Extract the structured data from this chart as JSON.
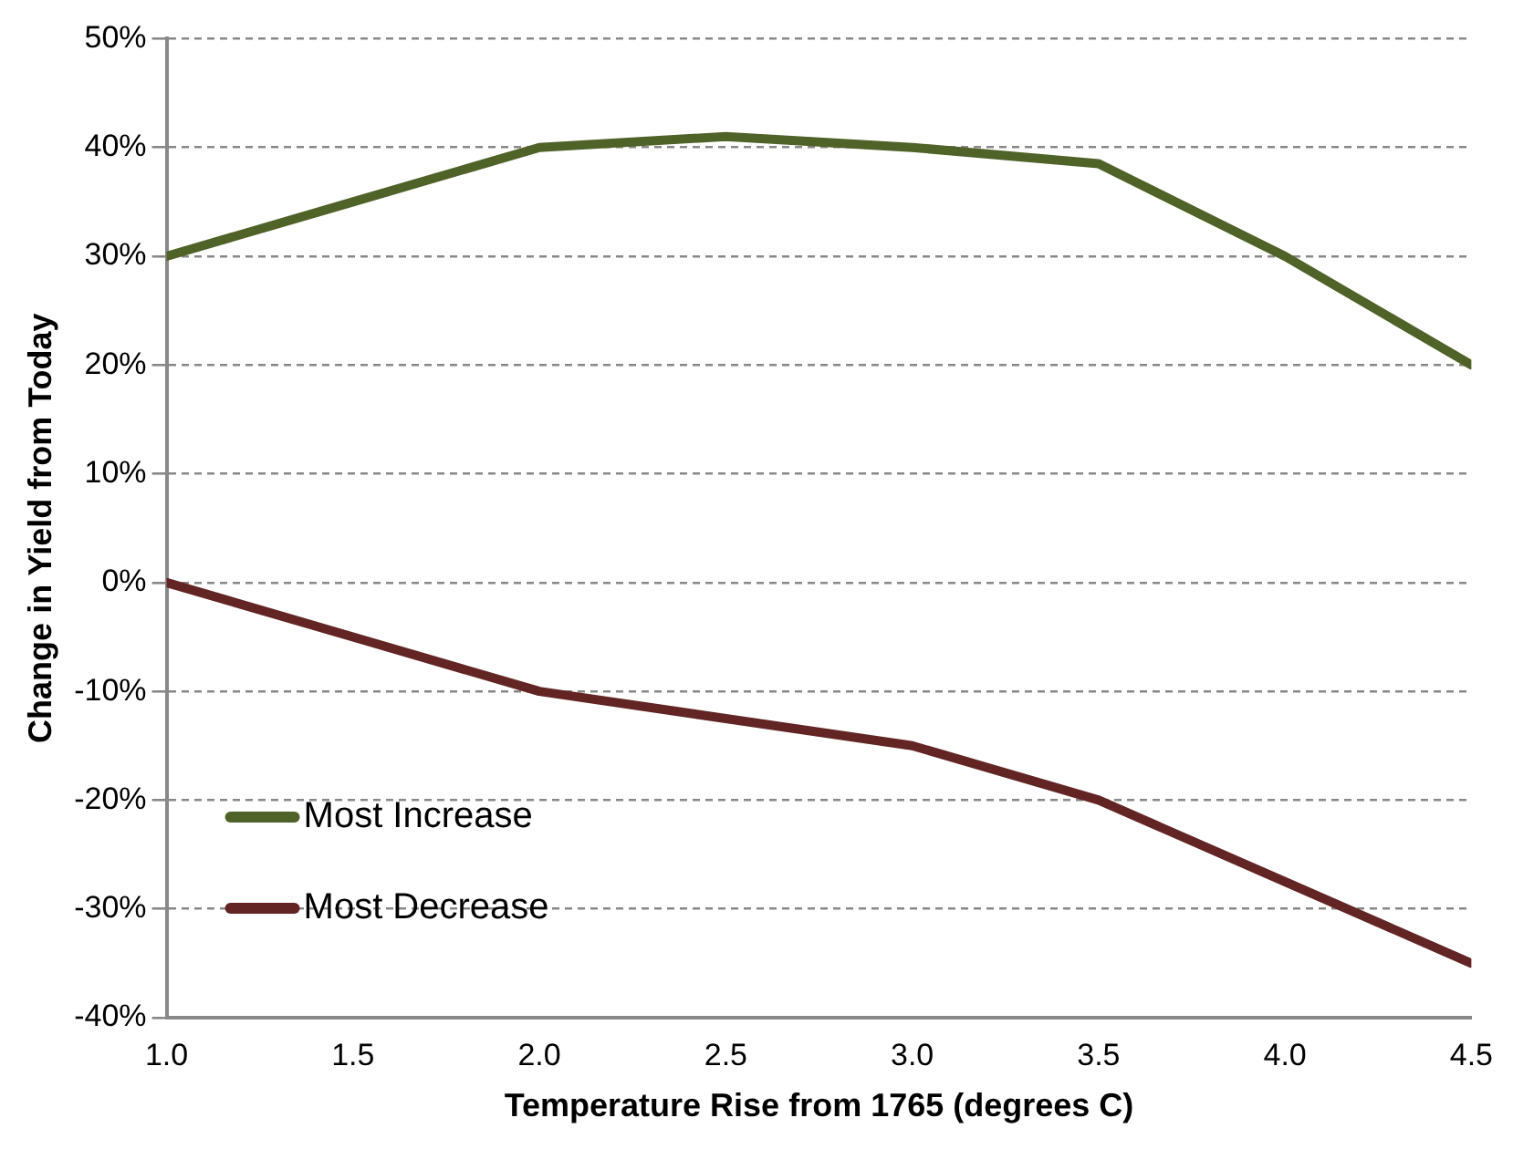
{
  "chart_data": {
    "type": "line",
    "xlabel": "Temperature Rise from 1765 (degrees C)",
    "ylabel": "Change in Yield from Today",
    "x": [
      1.0,
      1.5,
      2.0,
      2.5,
      3.0,
      3.5,
      4.0,
      4.5
    ],
    "series": [
      {
        "name": "Most Increase",
        "color": "#4f6228",
        "values": [
          30,
          35,
          40,
          41,
          40,
          38.5,
          30,
          20
        ]
      },
      {
        "name": "Most Decrease",
        "color": "#632523",
        "values": [
          0,
          -5,
          -10,
          -12.5,
          -15,
          -20,
          -27.5,
          -35
        ]
      }
    ],
    "xlim": [
      1.0,
      4.5
    ],
    "xticks": [
      {
        "value": 1,
        "label": "1.0"
      },
      {
        "value": 1.5,
        "label": "1.5"
      },
      {
        "value": 2,
        "label": "2.0"
      },
      {
        "value": 2.5,
        "label": "2.5"
      },
      {
        "value": 3,
        "label": "3.0"
      },
      {
        "value": 3.5,
        "label": "3.5"
      },
      {
        "value": 4,
        "label": "4.0"
      },
      {
        "value": 4.5,
        "label": "4.5"
      }
    ],
    "ylim": [
      -40,
      50
    ],
    "yticks": [
      {
        "value": -40,
        "label": "-40%"
      },
      {
        "value": -30,
        "label": "-30%"
      },
      {
        "value": -20,
        "label": "-20%"
      },
      {
        "value": -10,
        "label": "-10%"
      },
      {
        "value": 0,
        "label": "0%"
      },
      {
        "value": 10,
        "label": "10%"
      },
      {
        "value": 20,
        "label": "20%"
      },
      {
        "value": 30,
        "label": "30%"
      },
      {
        "value": 40,
        "label": "40%"
      },
      {
        "value": 50,
        "label": "50%"
      }
    ],
    "grid": "y",
    "legend": "bottom left",
    "marker": "none",
    "line_style": "solid"
  }
}
